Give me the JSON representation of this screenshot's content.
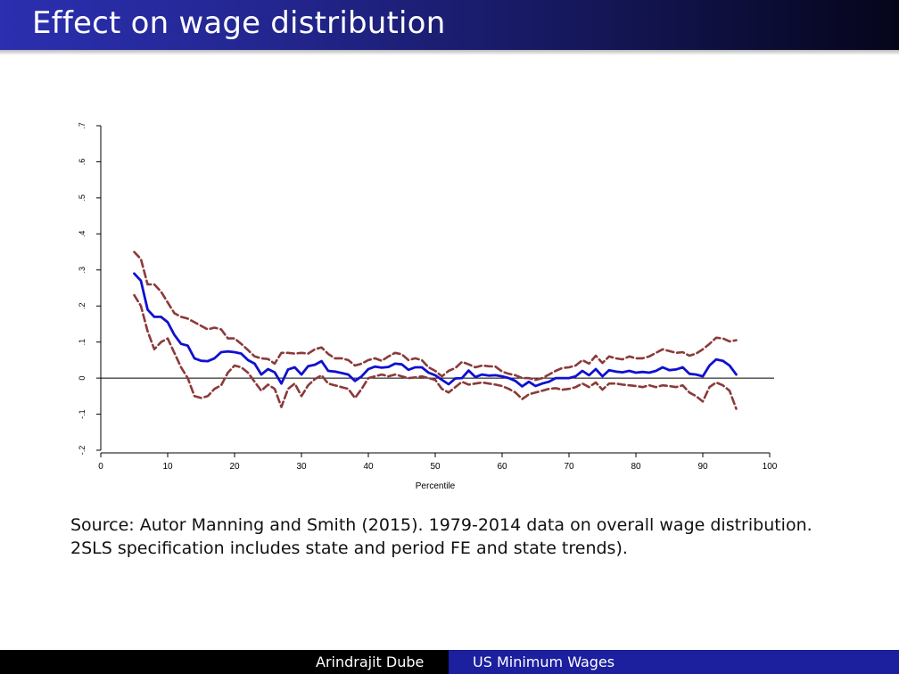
{
  "slide": {
    "title": "Effect on wage distribution",
    "caption_line1": "Source: Autor Manning and Smith (2015). 1979-2014 data on overall wage distribution.",
    "caption_line2": "2SLS specification includes state and period FE and state trends)."
  },
  "footer": {
    "author": "Arindrajit Dube",
    "talk": "US Minimum Wages"
  },
  "colors": {
    "estimate": "#1010d0",
    "ci": "#8b3a3a",
    "axis": "#000000"
  },
  "chart_data": {
    "type": "line",
    "title": "",
    "xlabel": "Percentile",
    "ylabel": "",
    "xlim": [
      0,
      100
    ],
    "ylim": [
      -0.2,
      0.7
    ],
    "xticks": [
      0,
      10,
      20,
      30,
      40,
      50,
      60,
      70,
      80,
      90,
      100
    ],
    "xtick_labels": [
      "0",
      "10",
      "20",
      "30",
      "40",
      "50",
      "60",
      "70",
      "80",
      "90",
      "100"
    ],
    "yticks": [
      -0.2,
      -0.1,
      0,
      0.1,
      0.2,
      0.3,
      0.4,
      0.5,
      0.6,
      0.7
    ],
    "ytick_labels": [
      "-.2",
      "-.1",
      "0",
      ".1",
      ".2",
      ".3",
      ".4",
      ".5",
      ".6",
      ".7"
    ],
    "reference_line": 0,
    "grid": false,
    "legend": "none",
    "series": [
      {
        "style": "solid",
        "x": [
          5,
          6,
          7,
          8,
          9,
          10,
          11,
          12,
          13,
          14,
          15,
          16,
          17,
          18,
          19,
          20,
          21,
          22,
          23,
          24,
          25,
          26,
          27,
          28,
          29,
          30,
          31,
          32,
          33,
          34,
          35,
          36,
          37,
          38,
          39,
          40,
          41,
          42,
          43,
          44,
          45,
          46,
          47,
          48,
          49,
          50,
          51,
          52,
          53,
          54,
          55,
          56,
          57,
          58,
          59,
          60,
          61,
          62,
          63,
          64,
          65,
          66,
          67,
          68,
          69,
          70,
          71,
          72,
          73,
          74,
          75,
          76,
          77,
          78,
          79,
          80,
          81,
          82,
          83,
          84,
          85,
          86,
          87,
          88,
          89,
          90,
          91,
          92,
          93,
          94,
          95
        ],
        "y": [
          0.29,
          0.27,
          0.19,
          0.17,
          0.17,
          0.155,
          0.12,
          0.095,
          0.09,
          0.055,
          0.048,
          0.047,
          0.055,
          0.072,
          0.074,
          0.072,
          0.068,
          0.05,
          0.04,
          0.01,
          0.025,
          0.016,
          -0.015,
          0.024,
          0.03,
          0.01,
          0.033,
          0.037,
          0.047,
          0.02,
          0.018,
          0.014,
          0.01,
          -0.008,
          0.005,
          0.025,
          0.032,
          0.029,
          0.031,
          0.04,
          0.038,
          0.023,
          0.03,
          0.03,
          0.015,
          0.008,
          -0.005,
          -0.017,
          -0.001,
          0.0,
          0.021,
          0.003,
          0.01,
          0.007,
          0.008,
          0.005,
          0.0,
          -0.008,
          -0.023,
          -0.01,
          -0.022,
          -0.015,
          -0.01,
          0.0,
          0.0,
          0.0,
          0.005,
          0.02,
          0.008,
          0.025,
          0.005,
          0.022,
          0.018,
          0.016,
          0.02,
          0.015,
          0.017,
          0.015,
          0.02,
          0.03,
          0.022,
          0.024,
          0.03,
          0.012,
          0.01,
          0.005,
          0.035,
          0.052,
          0.048,
          0.035,
          0.01
        ]
      },
      {
        "style": "dashed",
        "x": [
          5,
          6,
          7,
          8,
          9,
          10,
          11,
          12,
          13,
          14,
          15,
          16,
          17,
          18,
          19,
          20,
          21,
          22,
          23,
          24,
          25,
          26,
          27,
          28,
          29,
          30,
          31,
          32,
          33,
          34,
          35,
          36,
          37,
          38,
          39,
          40,
          41,
          42,
          43,
          44,
          45,
          46,
          47,
          48,
          49,
          50,
          51,
          52,
          53,
          54,
          55,
          56,
          57,
          58,
          59,
          60,
          61,
          62,
          63,
          64,
          65,
          66,
          67,
          68,
          69,
          70,
          71,
          72,
          73,
          74,
          75,
          76,
          77,
          78,
          79,
          80,
          81,
          82,
          83,
          84,
          85,
          86,
          87,
          88,
          89,
          90,
          91,
          92,
          93,
          94,
          95
        ],
        "y": [
          0.35,
          0.33,
          0.26,
          0.26,
          0.24,
          0.21,
          0.18,
          0.17,
          0.165,
          0.155,
          0.145,
          0.135,
          0.14,
          0.135,
          0.11,
          0.11,
          0.095,
          0.078,
          0.06,
          0.055,
          0.053,
          0.04,
          0.07,
          0.07,
          0.068,
          0.07,
          0.068,
          0.08,
          0.085,
          0.067,
          0.055,
          0.055,
          0.05,
          0.035,
          0.04,
          0.05,
          0.055,
          0.048,
          0.06,
          0.07,
          0.066,
          0.05,
          0.055,
          0.05,
          0.03,
          0.02,
          0.005,
          0.02,
          0.028,
          0.045,
          0.038,
          0.03,
          0.035,
          0.033,
          0.032,
          0.018,
          0.012,
          0.008,
          0.0,
          0.0,
          -0.005,
          0.0,
          0.01,
          0.02,
          0.028,
          0.03,
          0.035,
          0.05,
          0.04,
          0.062,
          0.042,
          0.06,
          0.055,
          0.052,
          0.06,
          0.055,
          0.055,
          0.06,
          0.07,
          0.08,
          0.075,
          0.07,
          0.072,
          0.062,
          0.068,
          0.08,
          0.095,
          0.112,
          0.11,
          0.102,
          0.105
        ]
      },
      {
        "style": "dashed",
        "x": [
          5,
          6,
          7,
          8,
          9,
          10,
          11,
          12,
          13,
          14,
          15,
          16,
          17,
          18,
          19,
          20,
          21,
          22,
          23,
          24,
          25,
          26,
          27,
          28,
          29,
          30,
          31,
          32,
          33,
          34,
          35,
          36,
          37,
          38,
          39,
          40,
          41,
          42,
          43,
          44,
          45,
          46,
          47,
          48,
          49,
          50,
          51,
          52,
          53,
          54,
          55,
          56,
          57,
          58,
          59,
          60,
          61,
          62,
          63,
          64,
          65,
          66,
          67,
          68,
          69,
          70,
          71,
          72,
          73,
          74,
          75,
          76,
          77,
          78,
          79,
          80,
          81,
          82,
          83,
          84,
          85,
          86,
          87,
          88,
          89,
          90,
          91,
          92,
          93,
          94,
          95
        ],
        "y": [
          0.23,
          0.2,
          0.13,
          0.08,
          0.1,
          0.11,
          0.07,
          0.03,
          0.0,
          -0.05,
          -0.055,
          -0.05,
          -0.03,
          -0.02,
          0.015,
          0.035,
          0.03,
          0.015,
          -0.01,
          -0.035,
          -0.018,
          -0.03,
          -0.08,
          -0.03,
          -0.015,
          -0.05,
          -0.02,
          -0.003,
          0.008,
          -0.015,
          -0.02,
          -0.025,
          -0.03,
          -0.055,
          -0.03,
          0.0,
          0.005,
          0.01,
          0.005,
          0.01,
          0.005,
          0.0,
          0.002,
          0.005,
          0.0,
          -0.005,
          -0.03,
          -0.04,
          -0.025,
          -0.01,
          -0.018,
          -0.015,
          -0.012,
          -0.015,
          -0.018,
          -0.022,
          -0.03,
          -0.04,
          -0.058,
          -0.045,
          -0.04,
          -0.035,
          -0.03,
          -0.028,
          -0.032,
          -0.03,
          -0.025,
          -0.015,
          -0.025,
          -0.012,
          -0.032,
          -0.015,
          -0.015,
          -0.018,
          -0.02,
          -0.022,
          -0.025,
          -0.02,
          -0.025,
          -0.02,
          -0.022,
          -0.025,
          -0.02,
          -0.04,
          -0.05,
          -0.065,
          -0.025,
          -0.012,
          -0.02,
          -0.035,
          -0.085
        ]
      }
    ]
  }
}
